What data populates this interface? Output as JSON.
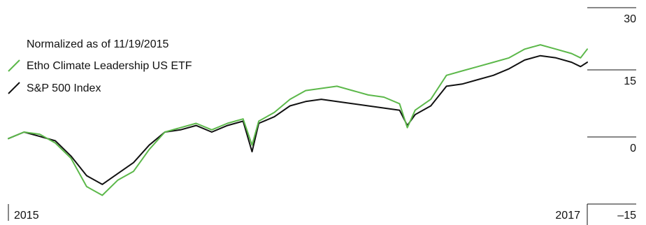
{
  "chart_data": {
    "type": "line",
    "title": "",
    "note": "Normalized as of 11/19/2015",
    "xlabel": "",
    "ylabel": "",
    "ylim": [
      -15,
      30
    ],
    "yticks": [
      30,
      15,
      0,
      -15
    ],
    "ytick_labels": [
      "30",
      "15",
      "0",
      "–15"
    ],
    "xtick_labels": [
      "2015",
      "2017"
    ],
    "legend_position": "top-left",
    "grid": false,
    "x_dates": [
      "2015-11-19",
      "2015-12-03",
      "2015-12-17",
      "2015-12-31",
      "2016-01-14",
      "2016-01-28",
      "2016-02-11",
      "2016-02-25",
      "2016-03-10",
      "2016-03-24",
      "2016-04-07",
      "2016-04-21",
      "2016-05-05",
      "2016-05-19",
      "2016-06-02",
      "2016-06-16",
      "2016-06-24",
      "2016-06-30",
      "2016-07-14",
      "2016-07-28",
      "2016-08-11",
      "2016-08-25",
      "2016-09-08",
      "2016-09-22",
      "2016-10-06",
      "2016-10-20",
      "2016-11-03",
      "2016-11-10",
      "2016-11-17",
      "2016-12-01",
      "2016-12-15",
      "2016-12-29",
      "2017-01-12",
      "2017-01-26",
      "2017-02-09",
      "2017-02-23",
      "2017-03-09",
      "2017-03-23",
      "2017-04-06",
      "2017-04-14",
      "2017-04-20"
    ],
    "series": [
      {
        "name": "Etho Climate Leadership US ETF",
        "color": "#5cb84a",
        "values": [
          0.0,
          1.5,
          1.0,
          -1.0,
          -4.5,
          -11.0,
          -13.0,
          -9.5,
          -7.5,
          -2.5,
          1.5,
          2.5,
          3.5,
          2.0,
          3.5,
          4.5,
          -1.5,
          4.0,
          6.0,
          9.0,
          11.0,
          11.5,
          12.0,
          11.0,
          10.0,
          9.5,
          8.0,
          2.5,
          6.5,
          9.0,
          14.5,
          15.5,
          16.5,
          17.5,
          18.5,
          20.5,
          21.5,
          20.5,
          19.5,
          18.5,
          20.5
        ]
      },
      {
        "name": "S&P 500 Index",
        "color": "#111111",
        "values": [
          0.0,
          1.5,
          0.5,
          -0.5,
          -4.0,
          -8.5,
          -10.5,
          -8.0,
          -5.5,
          -1.5,
          1.5,
          2.0,
          3.0,
          1.5,
          3.0,
          4.0,
          -3.0,
          3.5,
          5.0,
          7.5,
          8.5,
          9.0,
          8.5,
          8.0,
          7.5,
          7.0,
          6.5,
          3.0,
          5.5,
          7.5,
          12.0,
          12.5,
          13.5,
          14.5,
          16.0,
          18.0,
          19.0,
          18.5,
          17.5,
          16.5,
          17.5
        ]
      }
    ]
  }
}
